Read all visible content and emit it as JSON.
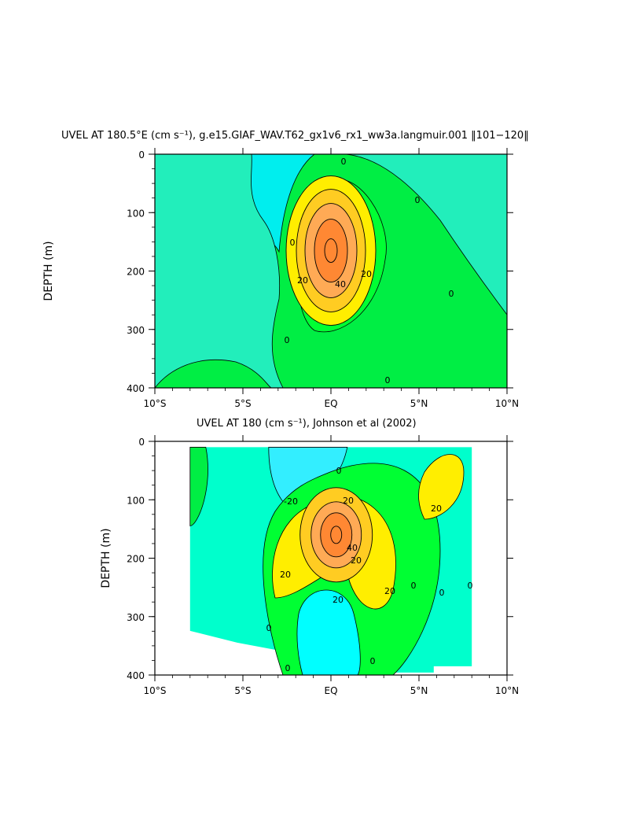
{
  "colors": {
    "-30": "#33ffff",
    "-20": "#33ffff",
    "-10": "#00eeee",
    "0": "#00ee44",
    "10": "#00ff33",
    "20": "#ffee00",
    "30": "#ffcc22",
    "40": "#ffaa55",
    "50": "#ff8833",
    "background": "#00ffcc"
  },
  "chart_data": [
    {
      "type": "contour",
      "title": "UVEL AT 180.5°E (cm s⁻¹), g.e15.GIAF_WAV.T62_gx1v6_rx1_ww3a.langmuir.001 ‖101−120‖",
      "xlabel": "",
      "ylabel": "DEPTH (m)",
      "xlim": [
        -10,
        10
      ],
      "ylim": [
        400,
        0
      ],
      "xticks": [
        "10°S",
        "5°S",
        "EQ",
        "5°N",
        "10°N"
      ],
      "yticks": [
        "0",
        "100",
        "200",
        "300",
        "400"
      ],
      "contour_levels": [
        0,
        10,
        20,
        30,
        40,
        50
      ],
      "core": {
        "lat": 0,
        "depth_m": 165,
        "max_speed": 55
      },
      "contour_labels": [
        "0",
        "0",
        "0",
        "0",
        "0",
        "0",
        "20",
        "20",
        "40"
      ]
    },
    {
      "type": "contour",
      "title": "UVEL AT 180 (cm s⁻¹), Johnson et al (2002)",
      "xlabel": "",
      "ylabel": "DEPTH (m)",
      "xlim": [
        -10,
        10
      ],
      "ylim": [
        400,
        0
      ],
      "xticks": [
        "10°S",
        "5°S",
        "EQ",
        "5°N",
        "10°N"
      ],
      "yticks": [
        "0",
        "100",
        "200",
        "300",
        "400"
      ],
      "contour_levels": [
        -20,
        -10,
        0,
        10,
        20,
        30,
        40,
        50
      ],
      "core": {
        "lat": 0.3,
        "depth_m": 160,
        "max_speed": 55
      },
      "data_extent": {
        "lat_min": -8,
        "lat_max": 8,
        "depth_min": 10,
        "depth_max": 385
      },
      "contour_labels": [
        "-20",
        "20",
        "20",
        "20",
        "40",
        "20",
        "20",
        "0",
        "0",
        "0",
        "0",
        "0",
        "0",
        "0",
        "20"
      ]
    }
  ]
}
